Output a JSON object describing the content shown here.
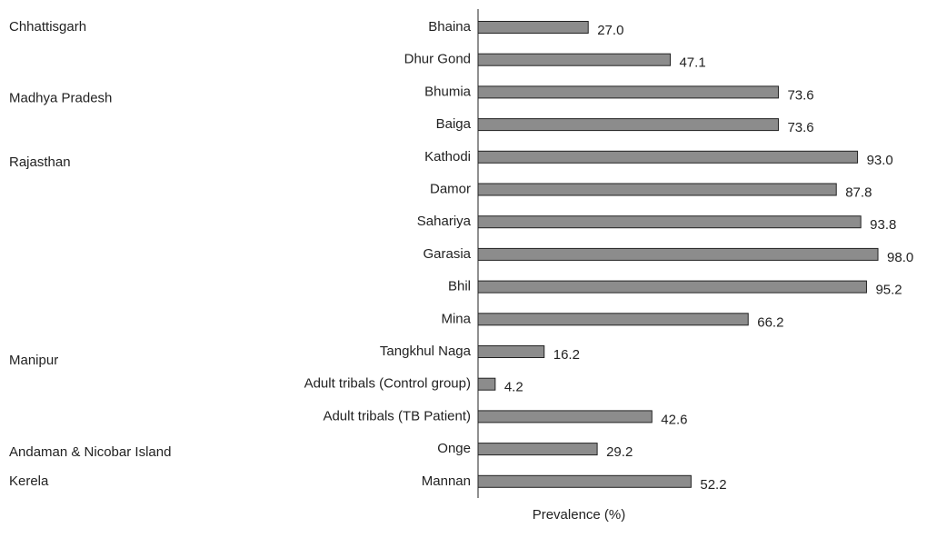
{
  "chart_data": {
    "type": "hbar",
    "categories": [
      "Bhaina",
      "Dhur Gond",
      "Bhumia",
      "Baiga",
      "Kathodi",
      "Damor",
      "Sahariya",
      "Garasia",
      "Bhil",
      "Mina",
      "Tangkhul Naga",
      "Adult tribals (Control group)",
      "Adult tribals (TB Patient)",
      "Onge",
      "Mannan"
    ],
    "row_groups": [
      "Chhattisgarh",
      null,
      "Madhya Pradesh",
      null,
      "Rajasthan",
      null,
      null,
      null,
      null,
      null,
      "Manipur",
      null,
      null,
      "Andaman & Nicobar Island",
      "Kerela"
    ],
    "values": [
      27.0,
      47.1,
      73.6,
      73.6,
      93.0,
      87.8,
      93.8,
      98.0,
      95.2,
      66.2,
      16.2,
      4.2,
      42.6,
      29.2,
      52.2
    ],
    "value_labels": [
      "27.0",
      "47.1",
      "73.6",
      "73.6",
      "93.0",
      "87.8",
      "93.8",
      "98.0",
      "95.2",
      "66.2",
      "16.2",
      "4.2",
      "42.6",
      "29.2",
      "52.2"
    ],
    "color": "#8c8c8c",
    "xlim": [
      0,
      100
    ],
    "xlabel": "Prevalence (%)"
  }
}
